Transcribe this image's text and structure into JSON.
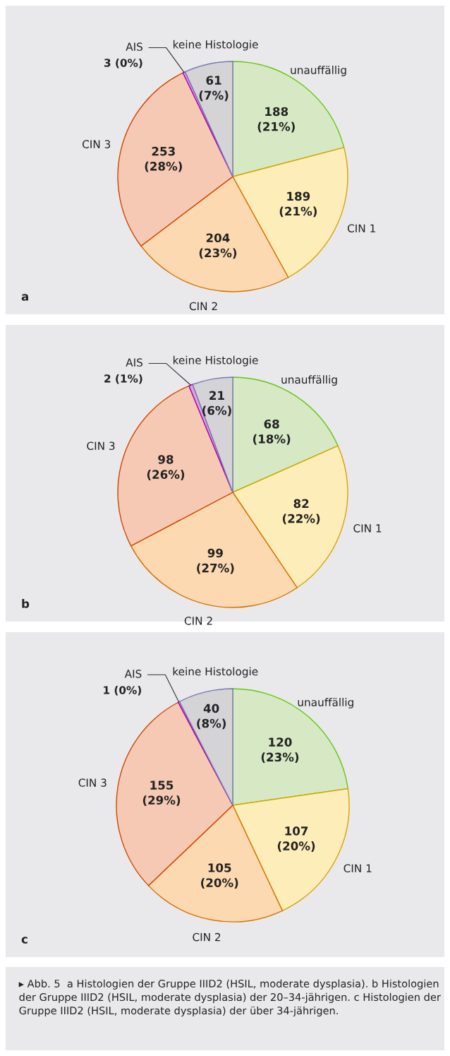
{
  "chart_data": [
    {
      "type": "pie",
      "categories": [
        "unauffällig",
        "CIN 1",
        "CIN 2",
        "CIN 3",
        "AIS",
        "keine Histologie"
      ],
      "values": [
        188,
        189,
        204,
        253,
        3,
        61
      ],
      "value_labels": [
        "188\n(21%)",
        "189\n(21%)",
        "204\n(23%)",
        "253\n(28%)",
        "3 (0%)",
        "61\n(7%)"
      ],
      "colors": [
        "#d6e9c4",
        "#fdedb9",
        "#fdd9b1",
        "#f5c9b3",
        "#d9a8de",
        "#d4d4d6"
      ],
      "legend": false,
      "annotations": [
        "a"
      ]
    },
    {
      "type": "pie",
      "categories": [
        "unauffällig",
        "CIN 1",
        "CIN 2",
        "CIN 3",
        "AIS",
        "keine Histologie"
      ],
      "values": [
        68,
        82,
        99,
        98,
        2,
        21
      ],
      "value_labels": [
        "68\n(18%)",
        "82\n(22%)",
        "99\n(27%)",
        "98\n(26%)",
        "2 (1%)",
        "21\n(6%)"
      ],
      "colors": [
        "#d6e9c4",
        "#fdedb9",
        "#fdd9b1",
        "#f5c9b3",
        "#d9a8de",
        "#d4d4d6"
      ],
      "legend": false,
      "annotations": [
        "b"
      ]
    },
    {
      "type": "pie",
      "categories": [
        "unauffällig",
        "CIN 1",
        "CIN 2",
        "CIN 3",
        "AIS",
        "keine Histologie"
      ],
      "values": [
        120,
        107,
        105,
        155,
        1,
        40
      ],
      "value_labels": [
        "120\n(23%)",
        "107\n(20%)",
        "105\n(20%)",
        "155\n(29%)",
        "1 (0%)",
        "40\n(8%)"
      ],
      "colors": [
        "#d6e9c4",
        "#fdedb9",
        "#fdd9b1",
        "#f5c9b3",
        "#d9a8de",
        "#d4d4d6"
      ],
      "legend": false,
      "annotations": [
        "c",
        "▸ Abb. 5  a Histologien der Gruppe IIID2 (HSIL, moderate dysplasia). b Histologien der Gruppe IIID2 (HSIL, moderate dysplasia) der 20–34-jährigen. c Histologien der Gruppe IIID2 (HSIL, moderate dysplasia) der über 34-jährigen."
      ]
    }
  ]
}
